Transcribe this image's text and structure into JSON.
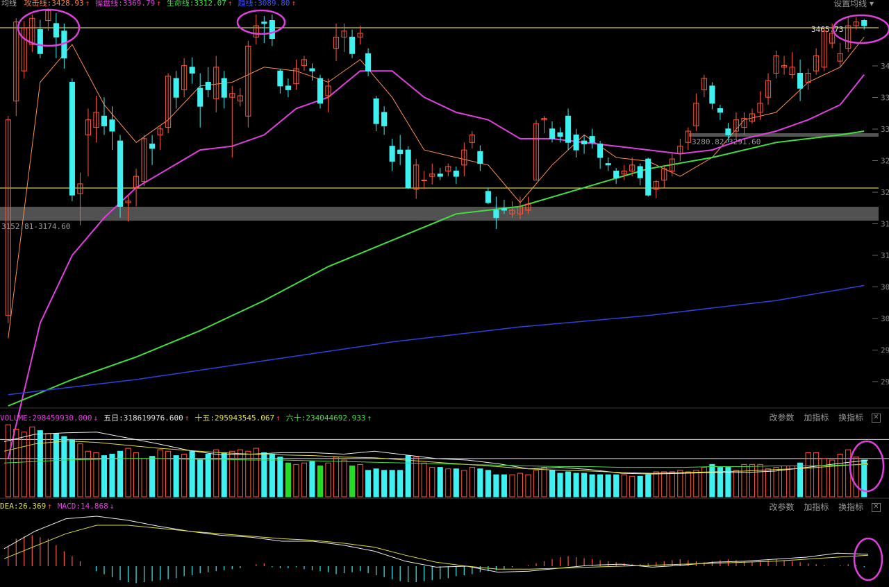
{
  "header": {
    "title": "均线",
    "items": [
      {
        "label": "攻击线:3428.93",
        "arrow": "↑",
        "color": "#ff8040",
        "arrow_color": "#ff4040"
      },
      {
        "label": "操盘线:3369.79",
        "arrow": "↑",
        "color": "#e040e0",
        "arrow_color": "#ff4040"
      },
      {
        "label": "生命线:3312.07",
        "arrow": "↑",
        "color": "#40e040",
        "arrow_color": "#ff4040"
      },
      {
        "label": "趋线:3089.80",
        "arrow": "↑",
        "color": "#4050ff",
        "arrow_color": "#ff4040"
      }
    ],
    "settings_label": "设置均线"
  },
  "price_labels": {
    "high_label": "3465.73",
    "zone_mid_label": "3280.82-3291.60",
    "zone_low_label": "3152.81-3174.60",
    "axis_ticks": [
      "34",
      "33",
      "33",
      "32",
      "32",
      "31",
      "31",
      "30",
      "30",
      "29",
      "29"
    ]
  },
  "volume_panel": {
    "items": [
      {
        "label": "VOLUME:298459930.000",
        "arrow": "↓",
        "color": "#e040e0",
        "arrow_color": "#e040e0"
      },
      {
        "label": "五日:318619976.600",
        "arrow": "↑",
        "color": "#e0e0e0",
        "arrow_color": "#ff4040"
      },
      {
        "label": "十五:295943545.067",
        "arrow": "↑",
        "color": "#e0e040",
        "arrow_color": "#ff4040"
      },
      {
        "label": "六十:234044692.933",
        "arrow": "↑",
        "color": "#40e040",
        "arrow_color": "#40e040"
      }
    ],
    "tools": [
      "改参数",
      "加指标",
      "换指标"
    ]
  },
  "macd_panel": {
    "items": [
      {
        "label": "DEA:26.369",
        "arrow": "↑",
        "color": "#e0e040",
        "arrow_color": "#ff4040"
      },
      {
        "label": "MACD:14.868",
        "arrow": "↓",
        "color": "#e040e0",
        "arrow_color": "#e040e0"
      }
    ],
    "tools": [
      "改参数",
      "加指标",
      "换指标"
    ]
  },
  "colors": {
    "up": "#ff5a3c",
    "down": "#3ef0f0",
    "ma5": "#ff9050",
    "ma20": "#e040e0",
    "ma60": "#40e040",
    "ma250": "#3040e0",
    "annotation": "#e040e0",
    "level": "#ffff66",
    "volume_green": "#22dd22"
  },
  "chart_data": {
    "type": "candlestick",
    "ylim": [
      2950,
      3480
    ],
    "levels": [
      3465.7,
      3210
    ],
    "zones": [
      [
        3152.81,
        3174.6
      ],
      [
        3280.82,
        3291.6
      ]
    ],
    "candles": [
      [
        3070,
        3330,
        3060,
        3335
      ],
      [
        3355,
        3460,
        3335,
        3465
      ],
      [
        3395,
        3452,
        3385,
        3461
      ],
      [
        3430,
        3465,
        3420,
        3470
      ],
      [
        3450,
        3418,
        3412,
        3463
      ],
      [
        3462,
        3475,
        3448,
        3478
      ],
      [
        3458,
        3440,
        3412,
        3472
      ],
      [
        3448,
        3412,
        3398,
        3458
      ],
      [
        3380,
        3230,
        3222,
        3385
      ],
      [
        3232,
        3245,
        3190,
        3260
      ],
      [
        3310,
        3330,
        3255,
        3345
      ],
      [
        3320,
        3340,
        3300,
        3362
      ],
      [
        3335,
        3322,
        3310,
        3360
      ],
      [
        3330,
        3315,
        3290,
        3348
      ],
      [
        3302,
        3215,
        3200,
        3310
      ],
      [
        3220,
        3222,
        3195,
        3230
      ],
      [
        3240,
        3255,
        3215,
        3265
      ],
      [
        3248,
        3305,
        3242,
        3310
      ],
      [
        3298,
        3292,
        3270,
        3310
      ],
      [
        3310,
        3318,
        3290,
        3322
      ],
      [
        3320,
        3388,
        3312,
        3392
      ],
      [
        3385,
        3360,
        3345,
        3395
      ],
      [
        3370,
        3402,
        3360,
        3412
      ],
      [
        3400,
        3392,
        3378,
        3413
      ],
      [
        3372,
        3348,
        3320,
        3392
      ],
      [
        3380,
        3370,
        3360,
        3400
      ],
      [
        3358,
        3400,
        3340,
        3415
      ],
      [
        3385,
        3360,
        3345,
        3395
      ],
      [
        3360,
        3365,
        3280,
        3375
      ],
      [
        3355,
        3362,
        3348,
        3372
      ],
      [
        3335,
        3428,
        3320,
        3435
      ],
      [
        3440,
        3455,
        3430,
        3470
      ],
      [
        3460,
        3458,
        3432,
        3468
      ],
      [
        3462,
        3438,
        3428,
        3470
      ],
      [
        3395,
        3375,
        3365,
        3398
      ],
      [
        3375,
        3370,
        3360,
        3385
      ],
      [
        3378,
        3398,
        3370,
        3410
      ],
      [
        3402,
        3410,
        3395,
        3415
      ],
      [
        3398,
        3395,
        3382,
        3405
      ],
      [
        3385,
        3352,
        3345,
        3390
      ],
      [
        3362,
        3375,
        3340,
        3385
      ],
      [
        3425,
        3440,
        3408,
        3458
      ],
      [
        3440,
        3448,
        3420,
        3458
      ],
      [
        3440,
        3418,
        3412,
        3450
      ],
      [
        3440,
        3445,
        3430,
        3455
      ],
      [
        3418,
        3395,
        3388,
        3425
      ],
      [
        3358,
        3325,
        3315,
        3362
      ],
      [
        3340,
        3322,
        3310,
        3348
      ],
      [
        3295,
        3275,
        3262,
        3305
      ],
      [
        3290,
        3285,
        3270,
        3310
      ],
      [
        3290,
        3240,
        3238,
        3295
      ],
      [
        3238,
        3270,
        3225,
        3278
      ],
      [
        3250,
        3250,
        3238,
        3262
      ],
      [
        3255,
        3258,
        3244,
        3272
      ],
      [
        3258,
        3255,
        3250,
        3266
      ],
      [
        3262,
        3268,
        3255,
        3272
      ],
      [
        3262,
        3255,
        3245,
        3268
      ],
      [
        3270,
        3290,
        3255,
        3300
      ],
      [
        3300,
        3310,
        3292,
        3315
      ],
      [
        3288,
        3272,
        3262,
        3296
      ],
      [
        3235,
        3220,
        3218,
        3240
      ],
      [
        3210,
        3200,
        3185,
        3228
      ],
      [
        3212,
        3210,
        3205,
        3224
      ],
      [
        3205,
        3210,
        3200,
        3222
      ],
      [
        3205,
        3215,
        3198,
        3228
      ],
      [
        3210,
        3218,
        3205,
        3228
      ],
      [
        3250,
        3325,
        3250,
        3330
      ],
      [
        3330,
        3332,
        3312,
        3335
      ],
      [
        3318,
        3305,
        3300,
        3328
      ],
      [
        3313,
        3308,
        3300,
        3320
      ],
      [
        3335,
        3300,
        3290,
        3345
      ],
      [
        3310,
        3290,
        3280,
        3318
      ],
      [
        3302,
        3298,
        3285,
        3310
      ],
      [
        3308,
        3300,
        3292,
        3318
      ],
      [
        3298,
        3280,
        3265,
        3302
      ],
      [
        3272,
        3270,
        3262,
        3280
      ],
      [
        3262,
        3253,
        3245,
        3266
      ],
      [
        3258,
        3262,
        3250,
        3270
      ],
      [
        3262,
        3270,
        3255,
        3280
      ],
      [
        3268,
        3253,
        3243,
        3272
      ],
      [
        3278,
        3230,
        3228,
        3280
      ],
      [
        3238,
        3248,
        3226,
        3250
      ],
      [
        3250,
        3265,
        3240,
        3270
      ],
      [
        3262,
        3278,
        3255,
        3285
      ],
      [
        3285,
        3295,
        3275,
        3305
      ],
      [
        3300,
        3315,
        3290,
        3320
      ],
      [
        3322,
        3352,
        3315,
        3365
      ],
      [
        3370,
        3385,
        3360,
        3390
      ],
      [
        3375,
        3352,
        3344,
        3380
      ],
      [
        3345,
        3340,
        3330,
        3350
      ],
      [
        3318,
        3310,
        3300,
        3326
      ],
      [
        3315,
        3330,
        3305,
        3340
      ],
      [
        3320,
        3332,
        3310,
        3340
      ],
      [
        3328,
        3338,
        3325,
        3345
      ],
      [
        3340,
        3352,
        3330,
        3368
      ],
      [
        3360,
        3382,
        3350,
        3392
      ],
      [
        3392,
        3415,
        3385,
        3422
      ],
      [
        3400,
        3402,
        3390,
        3415
      ],
      [
        3390,
        3400,
        3385,
        3420
      ],
      [
        3392,
        3372,
        3355,
        3410
      ],
      [
        3380,
        3392,
        3370,
        3398
      ],
      [
        3395,
        3415,
        3390,
        3425
      ],
      [
        3400,
        3448,
        3395,
        3452
      ],
      [
        3432,
        3445,
        3425,
        3458
      ],
      [
        3408,
        3418,
        3400,
        3432
      ],
      [
        3425,
        3455,
        3420,
        3468
      ],
      [
        3455,
        3460,
        3450,
        3466
      ],
      [
        3462,
        3455,
        3450,
        3464
      ]
    ],
    "ma_series": [
      {
        "name": "攻击线",
        "x": [
          0,
          4,
          8,
          12,
          16,
          20,
          24,
          28,
          32,
          36,
          40,
          44,
          48,
          52,
          56,
          60,
          64,
          68,
          72,
          76,
          80,
          84,
          88,
          92,
          96,
          100,
          104,
          108
        ],
        "values": [
          3040,
          3380,
          3430,
          3350,
          3300,
          3330,
          3375,
          3380,
          3400,
          3395,
          3380,
          3410,
          3360,
          3290,
          3280,
          3270,
          3220,
          3270,
          3310,
          3280,
          3275,
          3255,
          3280,
          3330,
          3340,
          3380,
          3400,
          3440
        ]
      },
      {
        "name": "操盘线",
        "x": [
          0,
          4,
          8,
          12,
          16,
          20,
          24,
          28,
          32,
          36,
          40,
          44,
          48,
          52,
          56,
          60,
          64,
          68,
          72,
          76,
          80,
          84,
          88,
          92,
          96,
          100,
          104,
          108
        ],
        "values": [
          2880,
          3060,
          3150,
          3200,
          3240,
          3265,
          3290,
          3295,
          3310,
          3345,
          3360,
          3395,
          3395,
          3360,
          3340,
          3330,
          3305,
          3305,
          3300,
          3295,
          3290,
          3285,
          3290,
          3305,
          3315,
          3330,
          3350,
          3390
        ]
      },
      {
        "name": "生命线",
        "x": [
          0,
          8,
          16,
          24,
          32,
          40,
          48,
          56,
          64,
          72,
          80,
          88,
          96,
          104,
          108
        ],
        "values": [
          2950,
          2985,
          3015,
          3050,
          3090,
          3135,
          3170,
          3205,
          3215,
          3240,
          3265,
          3280,
          3300,
          3310,
          3315
        ]
      },
      {
        "name": "趋线",
        "x": [
          0,
          16,
          32,
          48,
          64,
          80,
          96,
          108
        ],
        "values": [
          2965,
          2985,
          3010,
          3035,
          3055,
          3070,
          3090,
          3110
        ]
      }
    ],
    "volume": {
      "ylim": [
        0,
        1.0
      ],
      "bars": [
        0.98,
        0.92,
        0.88,
        0.95,
        0.9,
        0.86,
        0.86,
        0.82,
        0.78,
        0.72,
        0.62,
        0.6,
        0.56,
        0.58,
        0.62,
        0.66,
        0.6,
        0.52,
        0.55,
        0.64,
        0.62,
        0.56,
        0.58,
        0.62,
        0.5,
        0.58,
        0.64,
        0.6,
        0.62,
        0.64,
        0.62,
        0.66,
        0.6,
        0.58,
        0.54,
        0.46,
        0.44,
        0.46,
        0.48,
        0.42,
        0.46,
        0.54,
        0.5,
        0.42,
        0.44,
        0.36,
        0.38,
        0.36,
        0.36,
        0.36,
        0.56,
        0.54,
        0.46,
        0.4,
        0.4,
        0.38,
        0.38,
        0.36,
        0.4,
        0.38,
        0.36,
        0.3,
        0.3,
        0.3,
        0.32,
        0.3,
        0.36,
        0.4,
        0.36,
        0.32,
        0.34,
        0.32,
        0.32,
        0.3,
        0.3,
        0.3,
        0.3,
        0.3,
        0.28,
        0.28,
        0.3,
        0.34,
        0.34,
        0.34,
        0.36,
        0.34,
        0.36,
        0.4,
        0.44,
        0.4,
        0.4,
        0.36,
        0.44,
        0.44,
        0.44,
        0.38,
        0.4,
        0.42,
        0.42,
        0.46,
        0.6,
        0.6,
        0.52,
        0.5,
        0.58,
        0.64,
        0.54,
        0.5
      ],
      "ma5": [
        0.75,
        0.85,
        0.87,
        0.88,
        0.8,
        0.72,
        0.63,
        0.57,
        0.58,
        0.6,
        0.6,
        0.58,
        0.62,
        0.57,
        0.52,
        0.5,
        0.45,
        0.38,
        0.4,
        0.37,
        0.32,
        0.31,
        0.32,
        0.33,
        0.33,
        0.35,
        0.4,
        0.45,
        0.5
      ],
      "ma15": [
        0.62,
        0.72,
        0.76,
        0.74,
        0.7,
        0.66,
        0.63,
        0.6,
        0.58,
        0.57,
        0.56,
        0.54,
        0.53,
        0.5,
        0.47,
        0.44,
        0.41,
        0.38,
        0.36,
        0.35,
        0.33,
        0.32,
        0.33,
        0.34,
        0.35,
        0.37,
        0.39,
        0.42,
        0.45
      ],
      "ma60": [
        0.46,
        0.48,
        0.5,
        0.51,
        0.52,
        0.52,
        0.51,
        0.51,
        0.5,
        0.5,
        0.49,
        0.48,
        0.47,
        0.46,
        0.45,
        0.44,
        0.43,
        0.42,
        0.41,
        0.41,
        0.4,
        0.4,
        0.4,
        0.41,
        0.41,
        0.42,
        0.42,
        0.43,
        0.44
      ],
      "levels": [
        0.78,
        0.52
      ]
    },
    "macd": {
      "ylim": [
        -1,
        1
      ],
      "hist": [
        0.4,
        0.55,
        0.6,
        0.62,
        0.58,
        0.55,
        0.42,
        0.3,
        0.2,
        0.1,
        0.0,
        -0.1,
        -0.16,
        -0.22,
        -0.28,
        -0.32,
        -0.34,
        -0.32,
        -0.3,
        -0.28,
        -0.26,
        -0.24,
        -0.2,
        -0.18,
        -0.14,
        -0.12,
        -0.1,
        -0.08,
        -0.06,
        -0.04,
        0.0,
        0.04,
        0.06,
        -0.02,
        -0.04,
        -0.04,
        -0.02,
        -0.06,
        -0.08,
        -0.1,
        -0.12,
        -0.16,
        -0.14,
        -0.12,
        -0.1,
        -0.14,
        -0.18,
        -0.22,
        -0.26,
        -0.3,
        -0.32,
        -0.32,
        -0.3,
        -0.28,
        -0.26,
        -0.24,
        -0.2,
        -0.18,
        -0.16,
        -0.12,
        -0.1,
        -0.08,
        -0.06,
        -0.02,
        0.0,
        0.02,
        0.06,
        0.1,
        0.14,
        0.18,
        0.2,
        0.18,
        0.16,
        0.14,
        0.12,
        0.1,
        0.08,
        0.06,
        0.04,
        0.04,
        0.06,
        0.08,
        0.1,
        0.12,
        0.14,
        0.12,
        0.1,
        0.08,
        0.1,
        0.12,
        0.14,
        0.12,
        0.1,
        0.08,
        0.1,
        0.12,
        0.14,
        0.12,
        0.1,
        0.08,
        0.06,
        0.04,
        0.02,
        0.0,
        0.02,
        0.04,
        0.02,
        -0.02
      ],
      "dif": [
        0.35,
        0.7,
        0.95,
        1.0,
        0.92,
        0.8,
        0.7,
        0.62,
        0.58,
        0.5,
        0.5,
        0.42,
        0.3,
        0.1,
        -0.02,
        0.0,
        -0.12,
        -0.1,
        -0.04,
        0.02,
        0.04,
        -0.02,
        0.02,
        0.08,
        0.1,
        0.14,
        0.18,
        0.26,
        0.24
      ],
      "dea": [
        0.15,
        0.4,
        0.65,
        0.82,
        0.82,
        0.76,
        0.7,
        0.65,
        0.6,
        0.55,
        0.52,
        0.46,
        0.38,
        0.22,
        0.08,
        0.0,
        -0.06,
        -0.06,
        -0.04,
        -0.02,
        0.0,
        0.02,
        0.04,
        0.06,
        0.08,
        0.1,
        0.14,
        0.18,
        0.22
      ]
    }
  }
}
